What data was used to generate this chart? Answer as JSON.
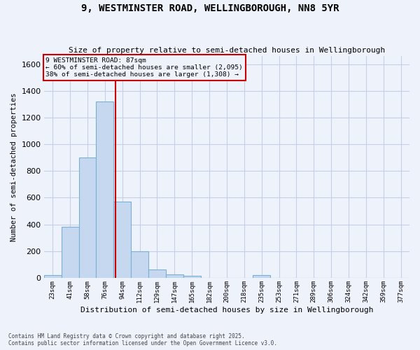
{
  "title": "9, WESTMINSTER ROAD, WELLINGBOROUGH, NN8 5YR",
  "subtitle": "Size of property relative to semi-detached houses in Wellingborough",
  "xlabel": "Distribution of semi-detached houses by size in Wellingborough",
  "ylabel": "Number of semi-detached properties",
  "bar_labels": [
    "23sqm",
    "41sqm",
    "58sqm",
    "76sqm",
    "94sqm",
    "112sqm",
    "129sqm",
    "147sqm",
    "165sqm",
    "182sqm",
    "200sqm",
    "218sqm",
    "235sqm",
    "253sqm",
    "271sqm",
    "289sqm",
    "306sqm",
    "324sqm",
    "342sqm",
    "359sqm",
    "377sqm"
  ],
  "bar_values": [
    20,
    380,
    900,
    1320,
    570,
    200,
    65,
    28,
    15,
    0,
    0,
    0,
    20,
    0,
    0,
    0,
    0,
    0,
    0,
    0,
    0
  ],
  "bar_color": "#c5d8f0",
  "bar_edge_color": "#7bafd4",
  "vline_x": 3.62,
  "vline_color": "#cc0000",
  "annotation_title": "9 WESTMINSTER ROAD: 87sqm",
  "annotation_line1": "← 60% of semi-detached houses are smaller (2,095)",
  "annotation_line2": "38% of semi-detached houses are larger (1,308) →",
  "footer_line1": "Contains HM Land Registry data © Crown copyright and database right 2025.",
  "footer_line2": "Contains public sector information licensed under the Open Government Licence v3.0.",
  "bg_color": "#eef2fa",
  "grid_color": "#c5d0e8",
  "ylim": [
    0,
    1660
  ],
  "yticks": [
    0,
    200,
    400,
    600,
    800,
    1000,
    1200,
    1400,
    1600
  ],
  "figsize": [
    6.0,
    5.0
  ],
  "dpi": 100
}
